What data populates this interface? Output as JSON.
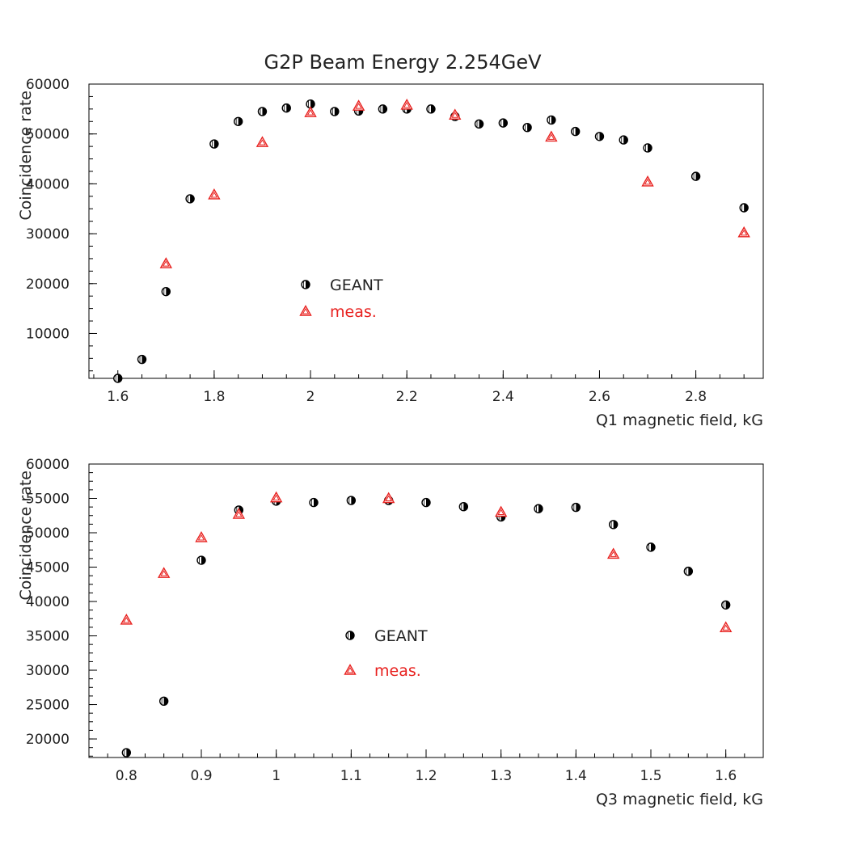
{
  "title": "G2P Beam Energy 2.254GeV",
  "colors": {
    "geant": "#000000",
    "meas": "#e8211f"
  },
  "chart_data": [
    {
      "type": "scatter",
      "xlabel": "Q1 magnetic field, kG",
      "ylabel": "Coincidence rate",
      "xlim": [
        1.54,
        2.94
      ],
      "ylim": [
        1000,
        60000
      ],
      "xticks": [
        "1.6",
        "1.8",
        "2",
        "2.2",
        "2.4",
        "2.6",
        "2.8"
      ],
      "xtick_values": [
        1.6,
        1.8,
        2.0,
        2.2,
        2.4,
        2.6,
        2.8
      ],
      "yticks": [
        "10000",
        "20000",
        "30000",
        "40000",
        "50000",
        "60000"
      ],
      "ytick_values": [
        10000,
        20000,
        30000,
        40000,
        50000,
        60000
      ],
      "legend": {
        "placement": "center-left",
        "entries": [
          "GEANT",
          "meas."
        ]
      },
      "series": [
        {
          "name": "GEANT",
          "marker": "circle",
          "x": [
            1.6,
            1.65,
            1.7,
            1.75,
            1.8,
            1.85,
            1.9,
            1.95,
            2.0,
            2.05,
            2.1,
            2.15,
            2.2,
            2.25,
            2.3,
            2.35,
            2.4,
            2.45,
            2.5,
            2.55,
            2.6,
            2.65,
            2.7,
            2.8,
            2.9
          ],
          "y": [
            1000,
            4800,
            18400,
            37000,
            48000,
            52500,
            54500,
            55200,
            56000,
            54500,
            54600,
            55000,
            55000,
            55000,
            53500,
            52000,
            52200,
            51300,
            52800,
            50500,
            49500,
            48800,
            47200,
            41500,
            35200
          ]
        },
        {
          "name": "meas.",
          "marker": "triangle",
          "x": [
            1.7,
            1.8,
            1.9,
            2.0,
            2.1,
            2.2,
            2.3,
            2.5,
            2.7,
            2.9
          ],
          "y": [
            24000,
            37800,
            48300,
            54300,
            55600,
            55800,
            53800,
            49400,
            40400,
            30200
          ]
        }
      ]
    },
    {
      "type": "scatter",
      "xlabel": "Q3 magnetic field, kG",
      "ylabel": "Coincidence rate",
      "xlim": [
        0.75,
        1.65
      ],
      "ylim": [
        17300,
        60000
      ],
      "xticks": [
        "0.8",
        "0.9",
        "1",
        "1.1",
        "1.2",
        "1.3",
        "1.4",
        "1.5",
        "1.6"
      ],
      "xtick_values": [
        0.8,
        0.9,
        1.0,
        1.1,
        1.2,
        1.3,
        1.4,
        1.5,
        1.6
      ],
      "yticks": [
        "20000",
        "25000",
        "30000",
        "35000",
        "40000",
        "45000",
        "50000",
        "55000",
        "60000"
      ],
      "ytick_values": [
        20000,
        25000,
        30000,
        35000,
        40000,
        45000,
        50000,
        55000,
        60000
      ],
      "legend": {
        "placement": "center",
        "entries": [
          "GEANT",
          "meas."
        ]
      },
      "series": [
        {
          "name": "GEANT",
          "marker": "circle",
          "x": [
            0.8,
            0.85,
            0.9,
            0.95,
            1.0,
            1.05,
            1.1,
            1.15,
            1.2,
            1.25,
            1.3,
            1.35,
            1.4,
            1.45,
            1.5,
            1.55,
            1.6
          ],
          "y": [
            18000,
            25500,
            46000,
            53300,
            54600,
            54400,
            54700,
            54700,
            54400,
            53800,
            52300,
            53500,
            53700,
            51200,
            47900,
            44400,
            39500
          ]
        },
        {
          "name": "meas.",
          "marker": "triangle",
          "x": [
            0.8,
            0.85,
            0.9,
            0.95,
            1.0,
            1.15,
            1.3,
            1.45,
            1.6
          ],
          "y": [
            37300,
            44100,
            49300,
            52700,
            55100,
            55000,
            53000,
            46900,
            36200
          ]
        }
      ]
    }
  ]
}
